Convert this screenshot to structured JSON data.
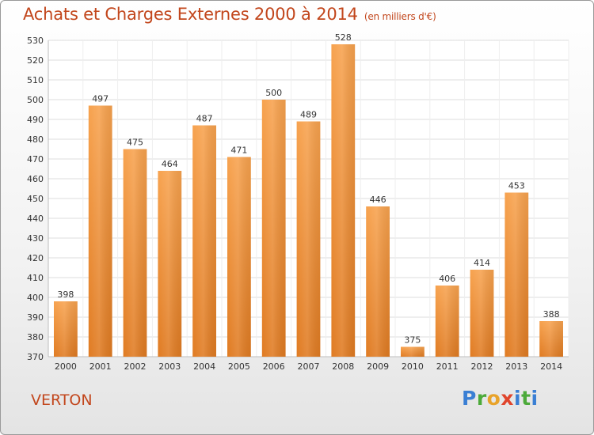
{
  "header": {
    "title": "Achats et Charges Externes 2000 à 2014",
    "subtitle": "(en milliers d'€)"
  },
  "footer": {
    "commune": "VERTON",
    "logo_text": [
      "P",
      "r",
      "o",
      "x",
      "i",
      "t",
      "i"
    ]
  },
  "colors": {
    "bar_light": "#f7a24e",
    "bar_dark": "#e07b22",
    "title": "#c2461c"
  },
  "chart_data": {
    "type": "bar",
    "title": "Achats et Charges Externes 2000 à 2014",
    "subtitle": "(en milliers d'€)",
    "categories": [
      "2000",
      "2001",
      "2002",
      "2003",
      "2004",
      "2005",
      "2006",
      "2007",
      "2008",
      "2009",
      "2010",
      "2011",
      "2012",
      "2013",
      "2014"
    ],
    "values": [
      398,
      497,
      475,
      464,
      487,
      471,
      500,
      489,
      528,
      446,
      375,
      406,
      414,
      453,
      388
    ],
    "ylim": [
      370,
      530
    ],
    "ytick_step": 10,
    "grid": true,
    "xlabel": "",
    "ylabel": ""
  }
}
